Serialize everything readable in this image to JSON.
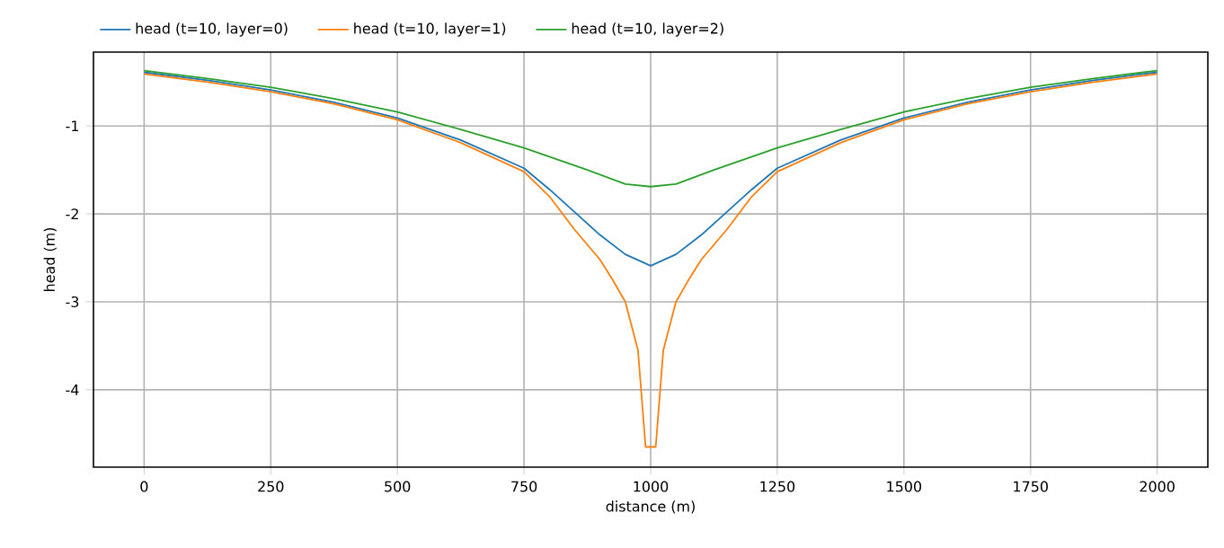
{
  "chart_data": {
    "type": "line",
    "xlabel": "distance (m)",
    "ylabel": "head (m)",
    "xlim": [
      -100,
      2100
    ],
    "ylim": [
      -4.88,
      -0.16
    ],
    "xticks": [
      0,
      250,
      500,
      750,
      1000,
      1250,
      1500,
      1750,
      2000
    ],
    "yticks": [
      -4,
      -3,
      -2,
      -1
    ],
    "grid": true,
    "legend": "top",
    "marker": "none",
    "line_style": "solid",
    "series": [
      {
        "name": "head (t=10, layer=0)",
        "color": "#1f77b4",
        "x": [
          0,
          125,
          250,
          375,
          500,
          625,
          750,
          800,
          850,
          900,
          950,
          1000,
          1050,
          1100,
          1150,
          1200,
          1250,
          1375,
          1500,
          1625,
          1750,
          1875,
          2000
        ],
        "values": [
          -0.39,
          -0.48,
          -0.59,
          -0.73,
          -0.91,
          -1.16,
          -1.48,
          -1.72,
          -1.98,
          -2.24,
          -2.46,
          -2.59,
          -2.46,
          -2.24,
          -1.98,
          -1.72,
          -1.48,
          -1.16,
          -0.91,
          -0.73,
          -0.59,
          -0.48,
          -0.39
        ]
      },
      {
        "name": "head (t=10, layer=1)",
        "color": "#ff7f0e",
        "x": [
          0,
          125,
          250,
          375,
          500,
          625,
          750,
          800,
          850,
          900,
          925,
          950,
          975,
          990,
          1010,
          1025,
          1050,
          1075,
          1100,
          1150,
          1200,
          1250,
          1375,
          1500,
          1625,
          1750,
          1875,
          2000
        ],
        "values": [
          -0.41,
          -0.5,
          -0.61,
          -0.75,
          -0.93,
          -1.19,
          -1.52,
          -1.8,
          -2.18,
          -2.52,
          -2.75,
          -3.0,
          -3.55,
          -4.65,
          -4.65,
          -3.55,
          -3.0,
          -2.75,
          -2.52,
          -2.18,
          -1.8,
          -1.52,
          -1.19,
          -0.93,
          -0.75,
          -0.61,
          -0.5,
          -0.41
        ]
      },
      {
        "name": "head (t=10, layer=2)",
        "color": "#2ca02c",
        "x": [
          0,
          125,
          250,
          375,
          500,
          625,
          750,
          875,
          950,
          1000,
          1050,
          1125,
          1250,
          1375,
          1500,
          1625,
          1750,
          1875,
          2000
        ],
        "values": [
          -0.37,
          -0.46,
          -0.56,
          -0.69,
          -0.84,
          -1.04,
          -1.25,
          -1.5,
          -1.66,
          -1.69,
          -1.66,
          -1.5,
          -1.25,
          -1.04,
          -0.84,
          -0.69,
          -0.56,
          -0.46,
          -0.37
        ]
      }
    ]
  }
}
